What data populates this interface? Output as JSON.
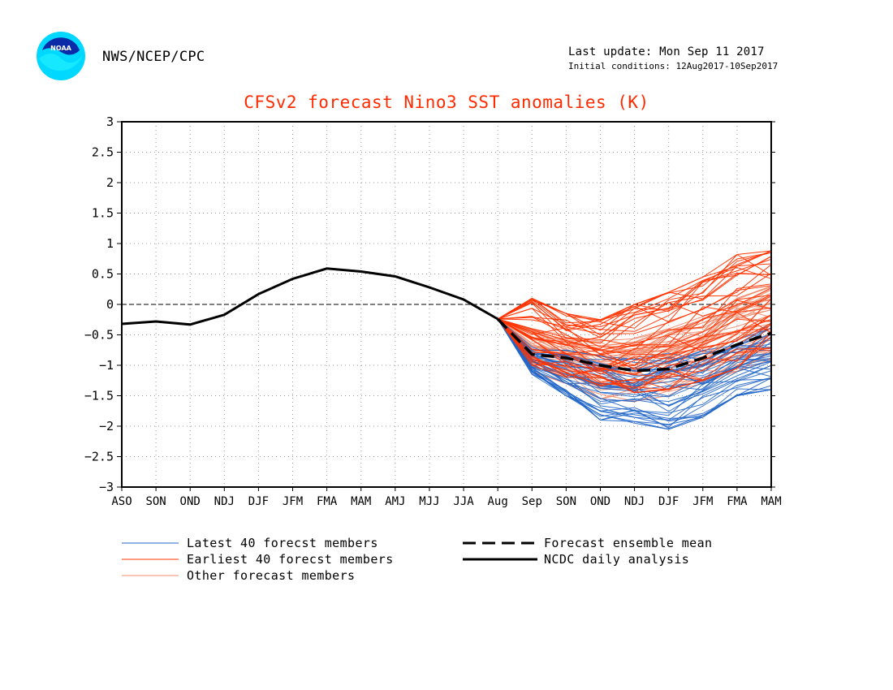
{
  "header": {
    "org": "NWS/NCEP/CPC",
    "logo_text": "NOAA",
    "last_update": "Last update: Mon Sep 11 2017",
    "initial_conditions": "Initial conditions: 12Aug2017-10Sep2017"
  },
  "legend": {
    "latest": "Latest 40 forecst members",
    "earliest": "Earliest 40 forecst members",
    "other": "Other forecast members",
    "mean": "Forecast ensemble mean",
    "analysis": "NCDC daily analysis"
  },
  "colors": {
    "title": "#ff2a00",
    "latest": "#2166c8",
    "earliest": "#ff3300",
    "other": "#f08a6a",
    "mean": "#000000",
    "analysis": "#000000"
  },
  "chart_data": {
    "type": "line",
    "title": "CFSv2 forecast Nino3 SST anomalies (K)",
    "categories": [
      "ASO",
      "SON",
      "OND",
      "NDJ",
      "DJF",
      "JFM",
      "FMA",
      "MAM",
      "AMJ",
      "MJJ",
      "JJA",
      "Aug",
      "Sep",
      "SON",
      "OND",
      "NDJ",
      "DJF",
      "JFM",
      "FMA",
      "MAM"
    ],
    "ylim": [
      -3,
      3
    ],
    "yticks": [
      "3",
      "2.5",
      "2",
      "1.5",
      "1",
      "0.5",
      "0",
      "−0.5",
      "−1",
      "−1.5",
      "−2",
      "−2.5",
      "−3"
    ],
    "grid": true,
    "series": [
      {
        "name": "NCDC daily analysis",
        "values": [
          -0.32,
          -0.28,
          -0.33,
          -0.17,
          0.17,
          0.42,
          0.59,
          0.54,
          0.46,
          0.28,
          0.08,
          -0.24,
          null,
          null,
          null,
          null,
          null,
          null,
          null,
          null
        ]
      },
      {
        "name": "Forecast ensemble mean",
        "values": [
          null,
          null,
          null,
          null,
          null,
          null,
          null,
          null,
          null,
          null,
          null,
          -0.24,
          -0.82,
          -0.88,
          -1.0,
          -1.09,
          -1.06,
          -0.88,
          -0.66,
          -0.47
        ]
      },
      {
        "name": "Latest 40 forecst members",
        "range_low": [
          -0.24,
          -1.15,
          -1.5,
          -1.9,
          -1.95,
          -2.05,
          -1.85,
          -1.5,
          -1.4
        ],
        "range_high": [
          -0.24,
          -0.7,
          -0.75,
          -0.85,
          -0.9,
          -0.8,
          -0.7,
          -0.55,
          -0.3
        ]
      },
      {
        "name": "Earliest 40 forecst members",
        "range_low": [
          -0.24,
          -1.0,
          -1.2,
          -1.35,
          -1.45,
          -1.4,
          -1.25,
          -1.05,
          -0.75
        ],
        "range_high": [
          -0.24,
          0.1,
          -0.15,
          -0.25,
          0.0,
          0.2,
          0.45,
          0.82,
          0.88
        ]
      }
    ]
  }
}
